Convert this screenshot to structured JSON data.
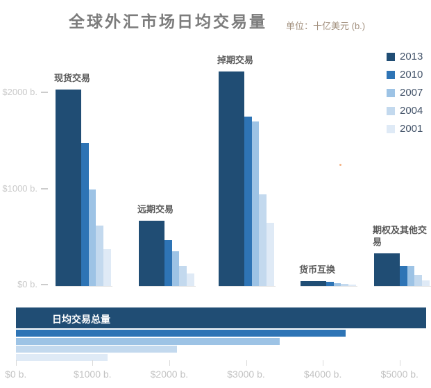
{
  "header": {
    "title": "全球外汇市场日均交易量",
    "subtitle": "单位：十亿美元 (b.)"
  },
  "colors": {
    "y2013": "#204d74",
    "y2010": "#2e74b5",
    "y2007": "#9dc3e5",
    "y2004": "#c3d9ee",
    "y2001": "#dfeaf6",
    "title_text": "#7c7c7c",
    "unit_text": "#a2907e",
    "group_label_text": "#595959",
    "axis_text": "#c3c3c3",
    "artifact_dot": "#f4b183"
  },
  "chart_data": [
    {
      "type": "bar",
      "orientation": "vertical",
      "title": "全球外汇市场日均交易量",
      "unit_label": "单位：十亿美元 (b.)",
      "categories": [
        "现货交易",
        "远期交易",
        "掉期交易",
        "货币互换",
        "期权及其他交易"
      ],
      "category_keys": [
        "spot",
        "forward",
        "swap",
        "currency-swap",
        "options-other"
      ],
      "series": [
        {
          "name": "2013",
          "color": "#204d74",
          "values": [
            2046,
            680,
            2228,
            54,
            337
          ]
        },
        {
          "name": "2010",
          "color": "#2e74b5",
          "values": [
            1488,
            475,
            1759,
            43,
            207
          ]
        },
        {
          "name": "2007",
          "color": "#9dc3e5",
          "values": [
            1005,
            362,
            1714,
            31,
            212
          ]
        },
        {
          "name": "2004",
          "color": "#c3d9ee",
          "values": [
            631,
            209,
            954,
            21,
            119
          ]
        },
        {
          "name": "2001",
          "color": "#dfeaf6",
          "values": [
            386,
            130,
            656,
            7,
            60
          ]
        }
      ],
      "yticks": [
        {
          "label": "$2000 b.",
          "value": 2000
        },
        {
          "label": "$1000 b.",
          "value": 1000
        },
        {
          "label": "$0 b.",
          "value": 0
        }
      ],
      "ylim": [
        0,
        2300
      ],
      "grid": false,
      "legend": [
        "2013",
        "2010",
        "2007",
        "2004",
        "2001"
      ],
      "legend_position": "right-top"
    },
    {
      "type": "bar",
      "orientation": "horizontal",
      "title": "日均交易总量",
      "categories": [
        "2013",
        "2010",
        "2007",
        "2004",
        "2001"
      ],
      "values": [
        5345,
        4300,
        3440,
        2100,
        1200
      ],
      "colors": [
        "#204d74",
        "#2e74b5",
        "#9dc3e5",
        "#c3d9ee",
        "#dfeaf6"
      ],
      "xticks": [
        {
          "label": "$0 b.",
          "value": 0
        },
        {
          "label": "$1000 b.",
          "value": 1000
        },
        {
          "label": "$2000 b.",
          "value": 2000
        },
        {
          "label": "$3000 b.",
          "value": 3000
        },
        {
          "label": "$4000 b.",
          "value": 4000
        },
        {
          "label": "$5000 b.",
          "value": 5000
        }
      ],
      "xlim": [
        0,
        5430
      ],
      "grid": false
    }
  ]
}
